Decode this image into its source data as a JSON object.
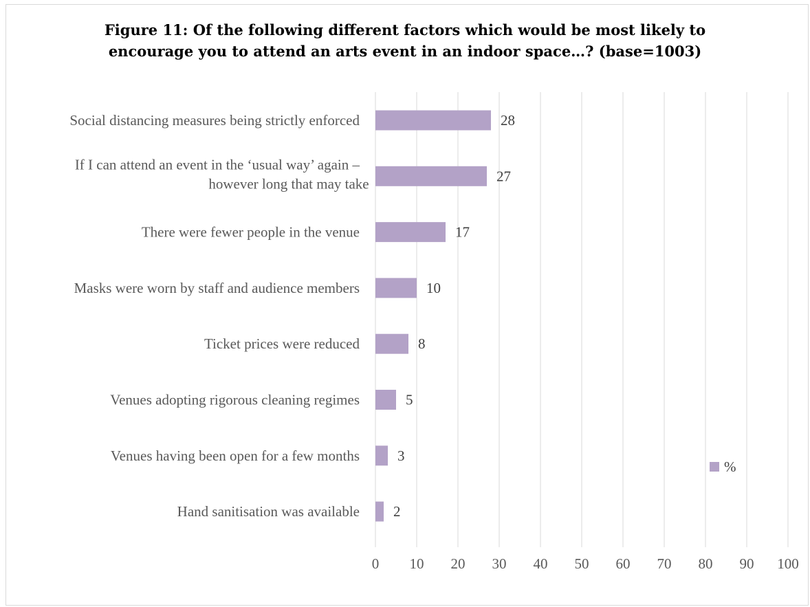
{
  "chart_data": {
    "type": "bar",
    "orientation": "horizontal",
    "title": "Figure 11: Of the following different factors which would be most likely to encourage you to attend an arts event in an indoor space…? (base=1003)",
    "title_lines": [
      "Figure 11: Of the following different factors which would be most likely to",
      "encourage you to attend an arts event in an indoor space…? (base=1003)"
    ],
    "categories": [
      [
        "Social distancing measures being strictly enforced"
      ],
      [
        "If I can attend an event in the ‘usual way’ again –",
        "however long that may take"
      ],
      [
        "There were fewer people in the venue"
      ],
      [
        "Masks were worn by staff and audience members"
      ],
      [
        "Ticket prices were reduced"
      ],
      [
        "Venues adopting rigorous cleaning regimes"
      ],
      [
        "Venues having been open for a few months"
      ],
      [
        "Hand sanitisation was available"
      ]
    ],
    "series": [
      {
        "name": "%",
        "values": [
          28,
          27,
          17,
          10,
          8,
          5,
          3,
          2
        ],
        "color": "#b3a2c7"
      }
    ],
    "xlim": [
      0,
      100
    ],
    "xticks": [
      0,
      10,
      20,
      30,
      40,
      50,
      60,
      70,
      80,
      90,
      100
    ],
    "grid": true,
    "data_labels": true,
    "legend_position": "right",
    "colors": {
      "bar": "#b3a2c7",
      "grid": "#d9d9d9",
      "axis_text": "#595959"
    }
  }
}
